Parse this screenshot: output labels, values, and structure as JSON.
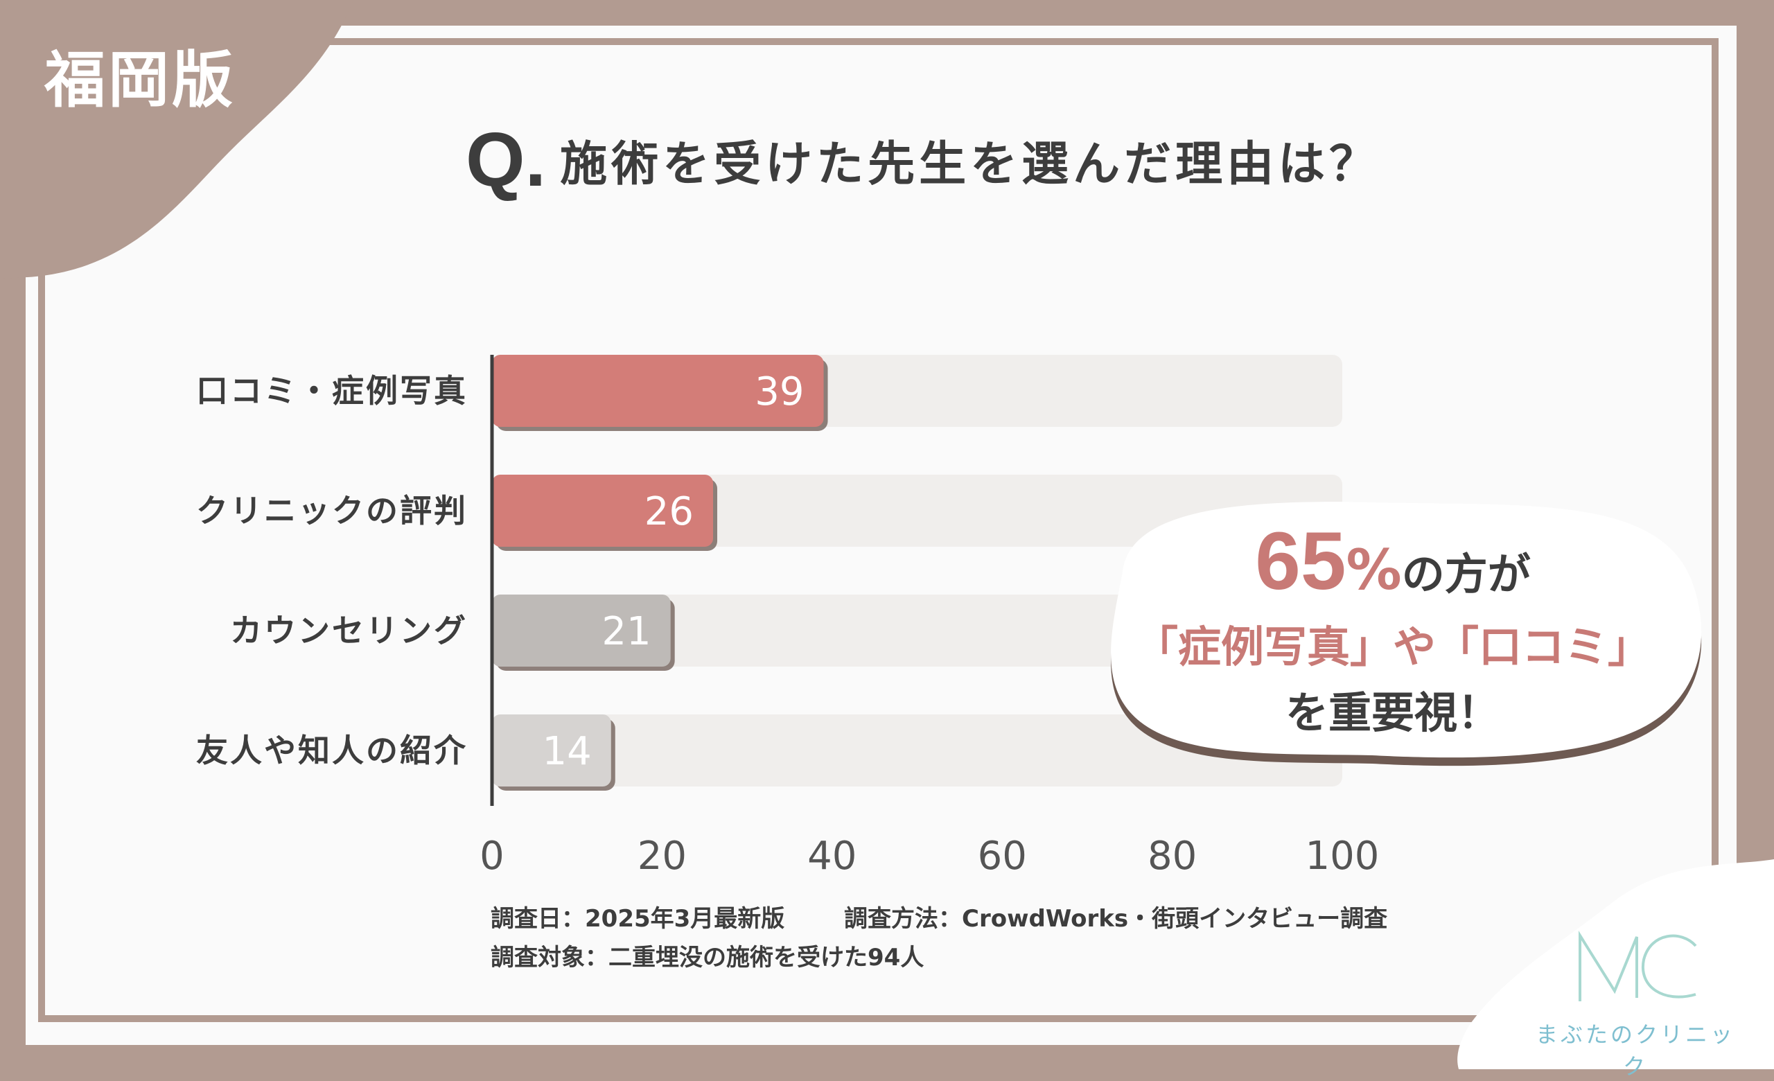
{
  "region_label": "福岡版",
  "question": {
    "prefix": "Q.",
    "text": "施術を受けた先生を選んだ理由は？"
  },
  "chart_data": {
    "type": "bar",
    "orientation": "horizontal",
    "categories": [
      "口コミ・症例写真",
      "クリニックの評判",
      "カウンセリング",
      "友人や知人の紹介"
    ],
    "values": [
      39,
      26,
      21,
      14
    ],
    "value_labels": [
      "39",
      "26",
      "21",
      "14"
    ],
    "xlim": [
      0,
      100
    ],
    "xticks": [
      "0",
      "20",
      "40",
      "60",
      "80",
      "100"
    ],
    "grid": false,
    "bar_colors": [
      "#d37d78",
      "#d37d78",
      "#bebab7",
      "#d6d3d1"
    ],
    "track_color": "#f0eeec"
  },
  "callout": {
    "percent": "65",
    "percent_sign": "%",
    "line1_suffix": "の方が",
    "line2": "「症例写真」や「口コミ」",
    "line3": "を重要視！"
  },
  "notes": {
    "date": "調査日：2025年3月最新版",
    "method": "調査方法：CrowdWorks・街頭インタビュー調査",
    "target": "調査対象：二重埋没の施術を受けた94人"
  },
  "logo": {
    "mark": "MC",
    "name": "まぶたのクリニック",
    "color": "#7fbfd0"
  },
  "colors": {
    "frame": "#b29b91",
    "accent": "#c87a76",
    "text": "#3d3d3d"
  }
}
